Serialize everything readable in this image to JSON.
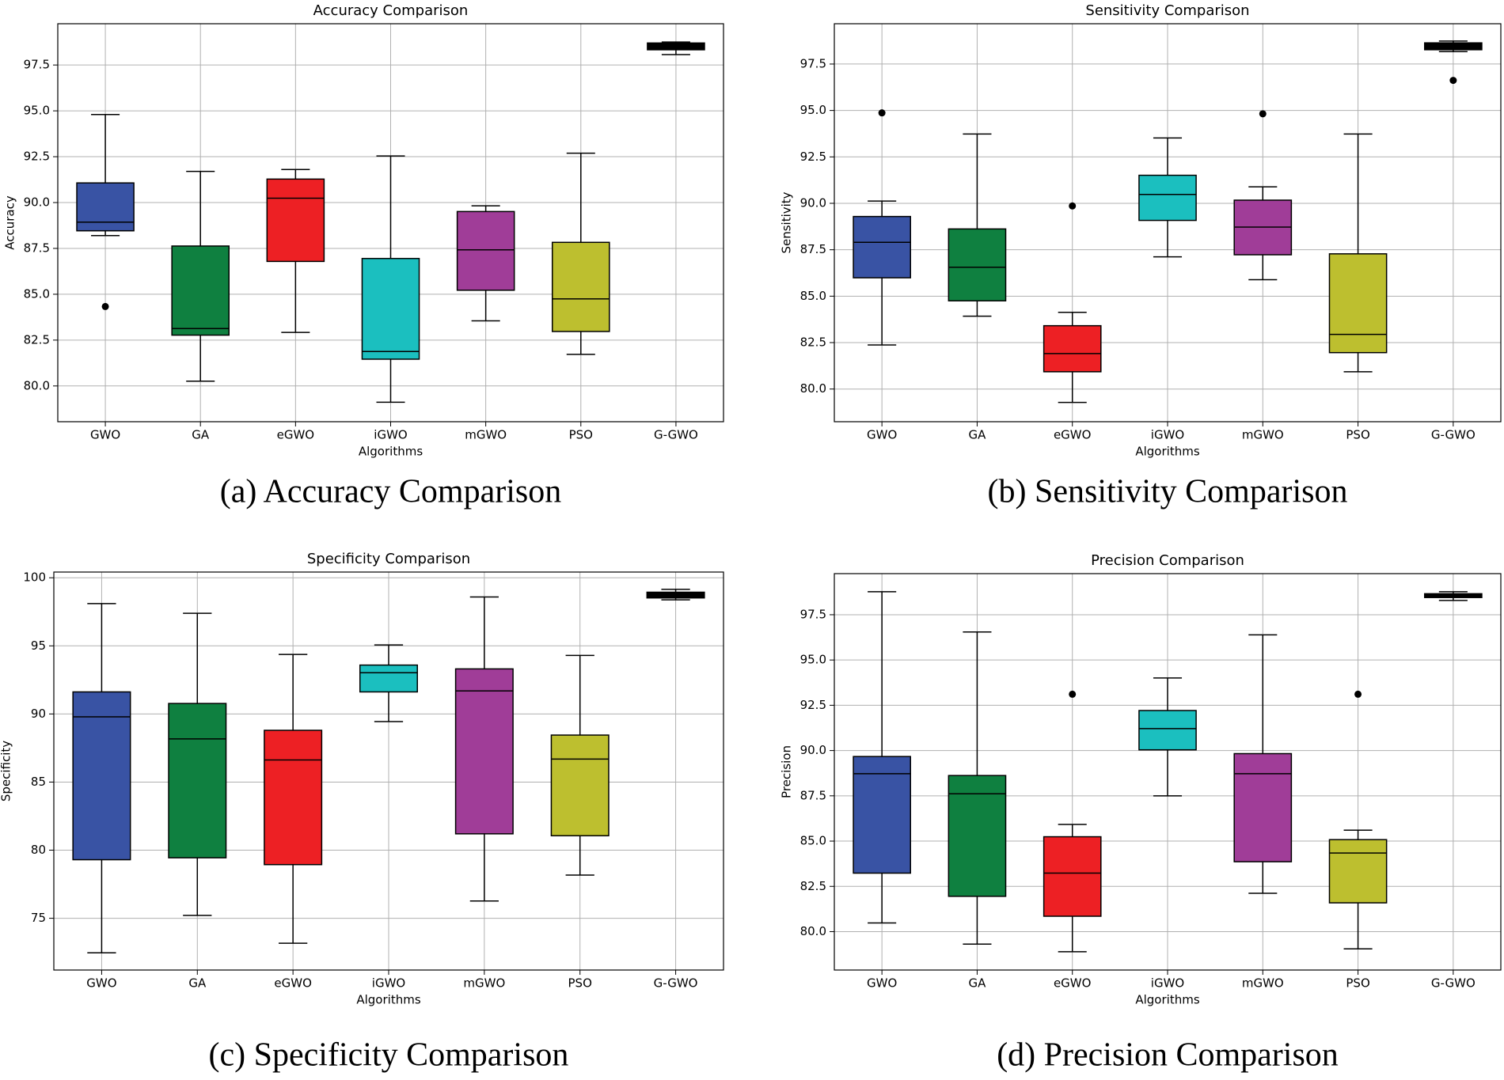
{
  "chart_data": [
    {
      "type": "box",
      "title": "Accuracy Comparison",
      "caption": "(a) Accuracy Comparison",
      "xlabel": "Algorithms",
      "ylabel": "Accuracy",
      "categories": [
        "GWO",
        "GA",
        "eGWO",
        "iGWO",
        "mGWO",
        "PSO",
        "G-GWO"
      ],
      "colors": [
        "#3953a4",
        "#0f8040",
        "#ed2024",
        "#1bbfbf",
        "#a03d98",
        "#bdbf2f",
        "#000000"
      ],
      "boxes": [
        {
          "whislo": 88.2,
          "q1": 88.46,
          "med": 88.93,
          "q3": 91.07,
          "whishi": 94.8,
          "fliers": [
            84.33
          ]
        },
        {
          "whislo": 80.26,
          "q1": 82.77,
          "med": 83.13,
          "q3": 87.63,
          "whishi": 91.7,
          "fliers": []
        },
        {
          "whislo": 82.92,
          "q1": 86.79,
          "med": 90.24,
          "q3": 91.28,
          "whishi": 91.8,
          "fliers": []
        },
        {
          "whislo": 79.11,
          "q1": 81.46,
          "med": 81.88,
          "q3": 86.95,
          "whishi": 92.54,
          "fliers": []
        },
        {
          "whislo": 83.55,
          "q1": 85.22,
          "med": 87.42,
          "q3": 89.51,
          "whishi": 89.82,
          "fliers": []
        },
        {
          "whislo": 81.72,
          "q1": 82.97,
          "med": 84.75,
          "q3": 87.83,
          "whishi": 92.69,
          "fliers": []
        },
        {
          "whislo": 98.07,
          "q1": 98.33,
          "med": 98.54,
          "q3": 98.7,
          "whishi": 98.75,
          "fliers": []
        }
      ],
      "ylim": [
        78.05,
        99.75
      ],
      "yticks": [
        {
          "value": 80,
          "label": "80.0"
        },
        {
          "value": 82.5,
          "label": "82.5"
        },
        {
          "value": 85,
          "label": "85.0"
        },
        {
          "value": 87.5,
          "label": "87.5"
        },
        {
          "value": 90,
          "label": "90.0"
        },
        {
          "value": 92.5,
          "label": "92.5"
        },
        {
          "value": 95,
          "label": "95.0"
        },
        {
          "value": 97.5,
          "label": "97.5"
        }
      ],
      "grid": true
    },
    {
      "type": "box",
      "title": "Sensitivity Comparison",
      "caption": "(b) Sensitivity Comparison",
      "xlabel": "Algorithms",
      "ylabel": "Sensitivity",
      "categories": [
        "GWO",
        "GA",
        "eGWO",
        "iGWO",
        "mGWO",
        "PSO",
        "G-GWO"
      ],
      "colors": [
        "#3953a4",
        "#0f8040",
        "#ed2024",
        "#1bbfbf",
        "#a03d98",
        "#bdbf2f",
        "#000000"
      ],
      "boxes": [
        {
          "whislo": 82.37,
          "q1": 85.99,
          "med": 87.9,
          "q3": 89.29,
          "whishi": 90.12,
          "fliers": [
            94.87
          ]
        },
        {
          "whislo": 83.92,
          "q1": 84.75,
          "med": 86.56,
          "q3": 88.62,
          "whishi": 93.73,
          "fliers": []
        },
        {
          "whislo": 79.28,
          "q1": 80.93,
          "med": 81.91,
          "q3": 83.41,
          "whishi": 84.13,
          "fliers": [
            89.86
          ]
        },
        {
          "whislo": 87.12,
          "q1": 89.08,
          "med": 90.48,
          "q3": 91.51,
          "whishi": 93.52,
          "fliers": []
        },
        {
          "whislo": 85.89,
          "q1": 87.23,
          "med": 88.72,
          "q3": 90.17,
          "whishi": 90.89,
          "fliers": [
            94.82
          ]
        },
        {
          "whislo": 80.93,
          "q1": 81.96,
          "med": 82.94,
          "q3": 87.28,
          "whishi": 93.73,
          "fliers": []
        },
        {
          "whislo": 98.17,
          "q1": 98.27,
          "med": 98.43,
          "q3": 98.64,
          "whishi": 98.74,
          "fliers": [
            96.62
          ]
        }
      ],
      "ylim": [
        78.24,
        99.67
      ],
      "yticks": [
        {
          "value": 80,
          "label": "80.0"
        },
        {
          "value": 82.5,
          "label": "82.5"
        },
        {
          "value": 85,
          "label": "85.0"
        },
        {
          "value": 87.5,
          "label": "87.5"
        },
        {
          "value": 90,
          "label": "90.0"
        },
        {
          "value": 92.5,
          "label": "92.5"
        },
        {
          "value": 95,
          "label": "95.0"
        },
        {
          "value": 97.5,
          "label": "97.5"
        }
      ],
      "grid": true
    },
    {
      "type": "box",
      "title": "Specificity Comparison",
      "caption": "(c) Specificity Comparison",
      "xlabel": "Algorithms",
      "ylabel": "Specificity",
      "categories": [
        "GWO",
        "GA",
        "eGWO",
        "iGWO",
        "mGWO",
        "PSO",
        "G-GWO"
      ],
      "colors": [
        "#3953a4",
        "#0f8040",
        "#ed2024",
        "#1bbfbf",
        "#a03d98",
        "#bdbf2f",
        "#000000"
      ],
      "boxes": [
        {
          "whislo": 72.46,
          "q1": 79.3,
          "med": 89.79,
          "q3": 91.62,
          "whishi": 98.1,
          "fliers": []
        },
        {
          "whislo": 75.21,
          "q1": 79.44,
          "med": 88.17,
          "q3": 90.77,
          "whishi": 97.39,
          "fliers": []
        },
        {
          "whislo": 73.17,
          "q1": 78.94,
          "med": 86.62,
          "q3": 88.8,
          "whishi": 94.37,
          "fliers": []
        },
        {
          "whislo": 89.44,
          "q1": 91.62,
          "med": 93.03,
          "q3": 93.59,
          "whishi": 95.07,
          "fliers": []
        },
        {
          "whislo": 76.27,
          "q1": 81.2,
          "med": 91.69,
          "q3": 93.31,
          "whishi": 98.59,
          "fliers": []
        },
        {
          "whislo": 78.17,
          "q1": 81.06,
          "med": 86.69,
          "q3": 88.45,
          "whishi": 94.3,
          "fliers": []
        },
        {
          "whislo": 98.38,
          "q1": 98.52,
          "med": 98.73,
          "q3": 98.94,
          "whishi": 99.15,
          "fliers": []
        }
      ],
      "ylim": [
        71.2,
        100.42
      ],
      "yticks": [
        75,
        80,
        85,
        90,
        95,
        100
      ],
      "grid": true
    },
    {
      "type": "box",
      "title": "Precision Comparison",
      "caption": "(d) Precision Comparison",
      "xlabel": "Algorithms",
      "ylabel": "Precision",
      "categories": [
        "GWO",
        "GA",
        "eGWO",
        "iGWO",
        "mGWO",
        "PSO",
        "G-GWO"
      ],
      "colors": [
        "#3953a4",
        "#0f8040",
        "#ed2024",
        "#1bbfbf",
        "#a03d98",
        "#bdbf2f",
        "#000000"
      ],
      "boxes": [
        {
          "whislo": 80.48,
          "q1": 83.23,
          "med": 88.72,
          "q3": 89.67,
          "whishi": 98.77,
          "fliers": []
        },
        {
          "whislo": 79.31,
          "q1": 81.95,
          "med": 87.61,
          "q3": 88.62,
          "whishi": 96.55,
          "fliers": []
        },
        {
          "whislo": 78.89,
          "q1": 80.85,
          "med": 83.23,
          "q3": 85.24,
          "whishi": 85.92,
          "fliers": [
            93.11
          ]
        },
        {
          "whislo": 87.5,
          "q1": 90.04,
          "med": 91.21,
          "q3": 92.21,
          "whishi": 94.01,
          "fliers": []
        },
        {
          "whislo": 82.12,
          "q1": 83.86,
          "med": 88.72,
          "q3": 89.83,
          "whishi": 96.39,
          "fliers": []
        },
        {
          "whislo": 79.05,
          "q1": 81.59,
          "med": 84.34,
          "q3": 85.08,
          "whishi": 85.6,
          "fliers": [
            93.11
          ]
        },
        {
          "whislo": 98.29,
          "q1": 98.45,
          "med": 98.56,
          "q3": 98.66,
          "whishi": 98.77,
          "fliers": []
        }
      ],
      "ylim": [
        77.88,
        99.77
      ],
      "yticks": [
        {
          "value": 80,
          "label": "80.0"
        },
        {
          "value": 82.5,
          "label": "82.5"
        },
        {
          "value": 85,
          "label": "85.0"
        },
        {
          "value": 87.5,
          "label": "87.5"
        },
        {
          "value": 90,
          "label": "90.0"
        },
        {
          "value": 92.5,
          "label": "92.5"
        },
        {
          "value": 95,
          "label": "95.0"
        },
        {
          "value": 97.5,
          "label": "97.5"
        }
      ],
      "grid": true
    }
  ]
}
